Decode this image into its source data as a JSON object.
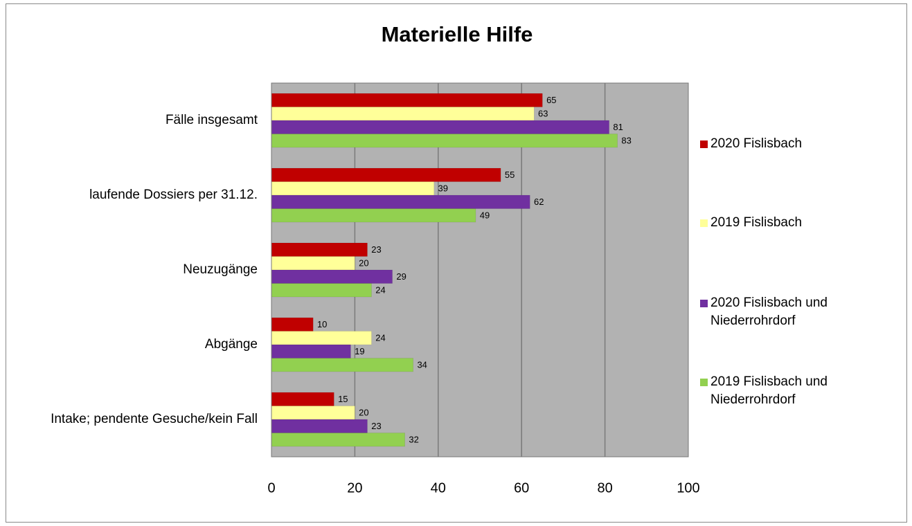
{
  "chart_data": {
    "type": "barh",
    "title": "Materielle Hilfe",
    "categories": [
      "Fälle insgesamt",
      "laufende Dossiers per 31.12.",
      "Neuzugänge",
      "Abgänge",
      "Intake; pendente Gesuche/kein Fall"
    ],
    "series": [
      {
        "name": "2020 Fislisbach",
        "color": "#c00000",
        "values": [
          65,
          55,
          23,
          10,
          15
        ]
      },
      {
        "name": "2019 Fislisbach",
        "color": "#ffff99",
        "values": [
          63,
          39,
          20,
          24,
          20
        ]
      },
      {
        "name": "2020 Fislisbach und Niederrohrdorf",
        "color": "#7030a0",
        "values": [
          81,
          62,
          29,
          19,
          23
        ]
      },
      {
        "name": "2019 Fislisbach und Niederrohrdorf",
        "color": "#92d050",
        "values": [
          83,
          49,
          24,
          34,
          32
        ]
      }
    ],
    "xlim": [
      0,
      100
    ],
    "xticks": [
      0,
      20,
      40,
      60,
      80,
      100
    ],
    "grid": true,
    "legend": "right"
  }
}
